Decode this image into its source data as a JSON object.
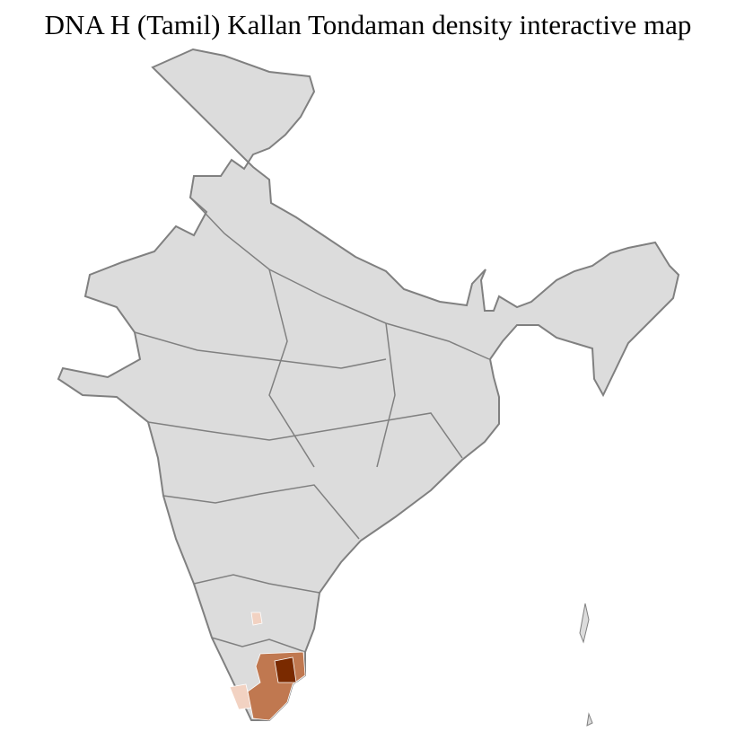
{
  "title": "DNA H (Tamil) Kallan Tondaman density interactive map",
  "colors": {
    "base_fill": "#dcdcdc",
    "district_border": "#ffffff",
    "state_border": "#808080",
    "density_low": "#f2d2c2",
    "density_mid": "#c07850",
    "density_high": "#7a2a00"
  }
}
